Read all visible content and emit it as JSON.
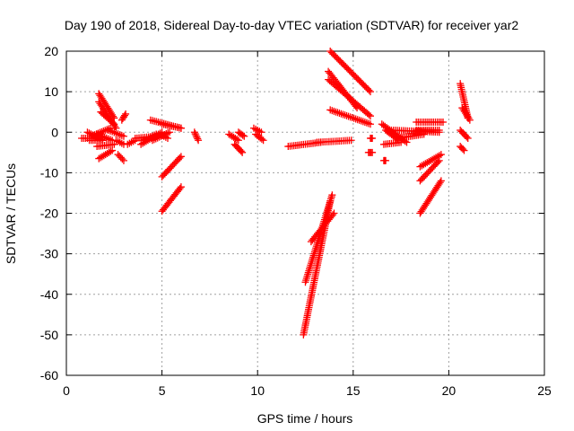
{
  "chart_data": {
    "type": "scatter",
    "title": "Day 190 of 2018, Sidereal Day-to-day VTEC variation (SDTVAR) for receiver yar2",
    "xlabel": "GPS time / hours",
    "ylabel": "SDTVAR / TECUs",
    "xlim": [
      0,
      25
    ],
    "ylim": [
      -60,
      20
    ],
    "xticks": [
      "0",
      "5",
      "10",
      "15",
      "20",
      "25"
    ],
    "yticks": [
      "-60",
      "-50",
      "-40",
      "-30",
      "-20",
      "-10",
      "0",
      "10",
      "20"
    ],
    "grid": true,
    "marker": "plus",
    "color": "#ff0000",
    "segments": [
      {
        "x": [
          0.8,
          1.7
        ],
        "y": [
          -1.5,
          -1.5
        ]
      },
      {
        "x": [
          1.1,
          1.9
        ],
        "y": [
          0.0,
          -2.0
        ]
      },
      {
        "x": [
          1.2,
          1.9
        ],
        "y": [
          -2.0,
          -2.0
        ]
      },
      {
        "x": [
          1.3,
          2.3
        ],
        "y": [
          -1.0,
          1.0
        ]
      },
      {
        "x": [
          1.7,
          2.5
        ],
        "y": [
          9.5,
          3.5
        ]
      },
      {
        "x": [
          1.7,
          2.6
        ],
        "y": [
          7.5,
          1.0
        ]
      },
      {
        "x": [
          1.8,
          2.5
        ],
        "y": [
          5.0,
          2.0
        ]
      },
      {
        "x": [
          1.6,
          2.4
        ],
        "y": [
          -0.5,
          -2.0
        ]
      },
      {
        "x": [
          1.6,
          2.5
        ],
        "y": [
          -3.5,
          -3.0
        ]
      },
      {
        "x": [
          1.7,
          2.4
        ],
        "y": [
          -6.5,
          -4.5
        ]
      },
      {
        "x": [
          2.2,
          3.0
        ],
        "y": [
          0.5,
          -1.0
        ]
      },
      {
        "x": [
          2.6,
          3.0
        ],
        "y": [
          -2.0,
          -3.0
        ]
      },
      {
        "x": [
          2.7,
          3.0
        ],
        "y": [
          -5.5,
          -7.0
        ]
      },
      {
        "x": [
          2.9,
          3.1
        ],
        "y": [
          3.0,
          4.5
        ]
      },
      {
        "x": [
          3.2,
          3.6
        ],
        "y": [
          -3.0,
          -2.0
        ]
      },
      {
        "x": [
          3.6,
          4.7
        ],
        "y": [
          -1.5,
          -1.0
        ]
      },
      {
        "x": [
          4.0,
          4.7
        ],
        "y": [
          -2.0,
          -0.5
        ]
      },
      {
        "x": [
          3.9,
          5.0
        ],
        "y": [
          -3.0,
          0.0
        ]
      },
      {
        "x": [
          4.5,
          5.4
        ],
        "y": [
          -2.0,
          0.0
        ]
      },
      {
        "x": [
          4.4,
          6.0
        ],
        "y": [
          3.0,
          1.0
        ]
      },
      {
        "x": [
          5.0,
          6.0
        ],
        "y": [
          2.0,
          1.0
        ]
      },
      {
        "x": [
          4.9,
          5.3
        ],
        "y": [
          -0.5,
          -1.5
        ]
      },
      {
        "x": [
          5.0,
          6.0
        ],
        "y": [
          -11.0,
          -6.0
        ]
      },
      {
        "x": [
          5.0,
          6.0
        ],
        "y": [
          -19.5,
          -13.5
        ]
      },
      {
        "x": [
          6.7,
          6.9
        ],
        "y": [
          0.0,
          -2.0
        ]
      },
      {
        "x": [
          8.5,
          9.0
        ],
        "y": [
          -0.5,
          -2.0
        ]
      },
      {
        "x": [
          8.8,
          9.2
        ],
        "y": [
          -3.0,
          -5.0
        ]
      },
      {
        "x": [
          9.0,
          9.3
        ],
        "y": [
          0.0,
          -1.0
        ]
      },
      {
        "x": [
          9.8,
          10.2
        ],
        "y": [
          1.0,
          0.0
        ]
      },
      {
        "x": [
          9.9,
          10.3
        ],
        "y": [
          -0.5,
          -2.0
        ]
      },
      {
        "x": [
          11.6,
          13.3
        ],
        "y": [
          -3.5,
          -2.5
        ]
      },
      {
        "x": [
          13.1,
          14.9
        ],
        "y": [
          -2.5,
          -2.0
        ]
      },
      {
        "x": [
          12.4,
          13.8
        ],
        "y": [
          -50.0,
          -17.0
        ]
      },
      {
        "x": [
          12.5,
          13.9
        ],
        "y": [
          -37.0,
          -15.5
        ]
      },
      {
        "x": [
          12.8,
          14.0
        ],
        "y": [
          -27.0,
          -20.0
        ]
      },
      {
        "x": [
          13.8,
          15.9
        ],
        "y": [
          20.0,
          10.0
        ]
      },
      {
        "x": [
          13.7,
          15.2
        ],
        "y": [
          15.0,
          6.0
        ]
      },
      {
        "x": [
          13.7,
          15.9
        ],
        "y": [
          13.0,
          4.0
        ]
      },
      {
        "x": [
          13.8,
          15.9
        ],
        "y": [
          5.5,
          2.0
        ]
      },
      {
        "x": [
          15.9,
          16.0
        ],
        "y": [
          -1.5,
          -1.5
        ]
      },
      {
        "x": [
          15.8,
          16.0
        ],
        "y": [
          -5.0,
          -5.0
        ]
      },
      {
        "x": [
          16.5,
          17.8
        ],
        "y": [
          2.0,
          -2.5
        ]
      },
      {
        "x": [
          16.7,
          17.4
        ],
        "y": [
          0.5,
          -2.0
        ]
      },
      {
        "x": [
          16.6,
          17.5
        ],
        "y": [
          -3.0,
          -2.5
        ]
      },
      {
        "x": [
          16.6,
          16.7
        ],
        "y": [
          -7.0,
          -7.0
        ]
      },
      {
        "x": [
          17.0,
          19.5
        ],
        "y": [
          0.5,
          0.0
        ]
      },
      {
        "x": [
          17.3,
          18.7
        ],
        "y": [
          -1.5,
          -0.5
        ]
      },
      {
        "x": [
          18.3,
          19.7
        ],
        "y": [
          2.5,
          2.5
        ]
      },
      {
        "x": [
          18.3,
          19.5
        ],
        "y": [
          0.5,
          0.5
        ]
      },
      {
        "x": [
          18.5,
          19.6
        ],
        "y": [
          -8.5,
          -5.5
        ]
      },
      {
        "x": [
          18.5,
          19.5
        ],
        "y": [
          -12.0,
          -7.0
        ]
      },
      {
        "x": [
          18.5,
          19.6
        ],
        "y": [
          -20.0,
          -12.0
        ]
      },
      {
        "x": [
          20.6,
          21.0
        ],
        "y": [
          12.0,
          3.5
        ]
      },
      {
        "x": [
          20.7,
          21.1
        ],
        "y": [
          6.0,
          3.0
        ]
      },
      {
        "x": [
          20.6,
          21.0
        ],
        "y": [
          0.5,
          -1.5
        ]
      },
      {
        "x": [
          20.6,
          20.8
        ],
        "y": [
          -3.5,
          -4.5
        ]
      }
    ]
  }
}
